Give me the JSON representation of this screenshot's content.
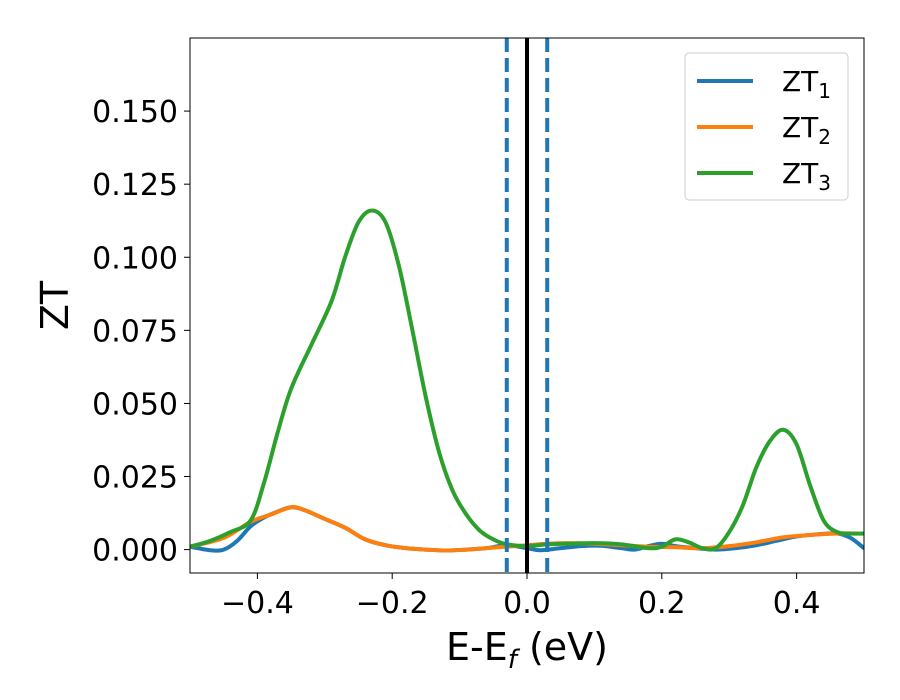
{
  "chart_data": {
    "type": "line",
    "title": "",
    "xlabel": "E-E",
    "xlabel_sub": "f",
    "xlabel_unit": " (eV)",
    "ylabel": "ZT",
    "xlim": [
      -0.5,
      0.5
    ],
    "ylim": [
      -0.008,
      0.175
    ],
    "xticks": [
      -0.4,
      -0.2,
      0.0,
      0.2,
      0.4
    ],
    "xtick_labels": [
      "−0.4",
      "−0.2",
      "0.0",
      "0.2",
      "0.4"
    ],
    "yticks": [
      0.0,
      0.025,
      0.05,
      0.075,
      0.1,
      0.125,
      0.15
    ],
    "ytick_labels": [
      "0.000",
      "0.025",
      "0.050",
      "0.075",
      "0.100",
      "0.125",
      "0.150"
    ],
    "grid": false,
    "legend_position": "top-right",
    "vlines": [
      {
        "x": -0.03,
        "style": "dashed",
        "color": "#1f77b4"
      },
      {
        "x": 0.0,
        "style": "solid",
        "color": "#000000"
      },
      {
        "x": 0.03,
        "style": "dashed",
        "color": "#1f77b4"
      }
    ],
    "series": [
      {
        "name": "ZT",
        "sub": "1",
        "color": "#1f77b4",
        "x": [
          -0.5,
          -0.47,
          -0.45,
          -0.43,
          -0.41,
          -0.39,
          -0.37,
          -0.35,
          -0.33,
          -0.3,
          -0.27,
          -0.24,
          -0.21,
          -0.18,
          -0.15,
          -0.12,
          -0.09,
          -0.06,
          -0.03,
          0.0,
          0.02,
          0.05,
          0.08,
          0.11,
          0.14,
          0.16,
          0.18,
          0.2,
          0.22,
          0.25,
          0.28,
          0.31,
          0.34,
          0.37,
          0.4,
          0.43,
          0.46,
          0.48,
          0.5
        ],
        "y": [
          0.001,
          -0.0002,
          0.0,
          0.003,
          0.008,
          0.011,
          0.013,
          0.0145,
          0.0135,
          0.0105,
          0.0075,
          0.0035,
          0.0015,
          0.0005,
          0.0,
          -0.0003,
          0.0,
          0.0005,
          0.0015,
          0.0005,
          -0.0002,
          0.0005,
          0.0012,
          0.0013,
          0.0005,
          0.0,
          0.0012,
          0.002,
          0.0012,
          0.0005,
          0.0,
          0.0005,
          0.0015,
          0.003,
          0.0045,
          0.0052,
          0.0055,
          0.004,
          0.0005
        ]
      },
      {
        "name": "ZT",
        "sub": "2",
        "color": "#ff7f0e",
        "x": [
          -0.5,
          -0.45,
          -0.41,
          -0.38,
          -0.35,
          -0.33,
          -0.3,
          -0.27,
          -0.24,
          -0.21,
          -0.18,
          -0.15,
          -0.12,
          -0.09,
          -0.06,
          -0.03,
          0.0,
          0.03,
          0.06,
          0.1,
          0.14,
          0.18,
          0.22,
          0.26,
          0.3,
          0.34,
          0.38,
          0.42,
          0.46,
          0.5
        ],
        "y": [
          0.001,
          0.004,
          0.0095,
          0.012,
          0.0145,
          0.0135,
          0.0105,
          0.0075,
          0.0035,
          0.0015,
          0.0005,
          0.0,
          -0.0003,
          0.0,
          0.0005,
          0.001,
          0.0015,
          0.002,
          0.0022,
          0.002,
          0.0015,
          0.001,
          0.0008,
          0.0005,
          0.0012,
          0.0025,
          0.0042,
          0.005,
          0.0055,
          0.0055
        ]
      },
      {
        "name": "ZT",
        "sub": "3",
        "color": "#2ca02c",
        "x": [
          -0.5,
          -0.47,
          -0.44,
          -0.41,
          -0.39,
          -0.37,
          -0.35,
          -0.32,
          -0.29,
          -0.27,
          -0.25,
          -0.23,
          -0.21,
          -0.19,
          -0.17,
          -0.15,
          -0.13,
          -0.11,
          -0.09,
          -0.07,
          -0.05,
          -0.03,
          0.0,
          0.03,
          0.06,
          0.1,
          0.14,
          0.18,
          0.2,
          0.22,
          0.24,
          0.26,
          0.28,
          0.3,
          0.32,
          0.34,
          0.36,
          0.38,
          0.4,
          0.42,
          0.44,
          0.46,
          0.48,
          0.5
        ],
        "y": [
          0.001,
          0.003,
          0.006,
          0.01,
          0.023,
          0.04,
          0.055,
          0.07,
          0.085,
          0.1,
          0.112,
          0.116,
          0.112,
          0.097,
          0.075,
          0.052,
          0.033,
          0.02,
          0.012,
          0.0065,
          0.0035,
          0.0018,
          0.0012,
          0.0018,
          0.002,
          0.0022,
          0.0018,
          0.0005,
          0.001,
          0.0035,
          0.0025,
          0.0005,
          0.0005,
          0.006,
          0.015,
          0.028,
          0.037,
          0.041,
          0.036,
          0.022,
          0.01,
          0.006,
          0.0055,
          0.0055
        ]
      }
    ]
  }
}
